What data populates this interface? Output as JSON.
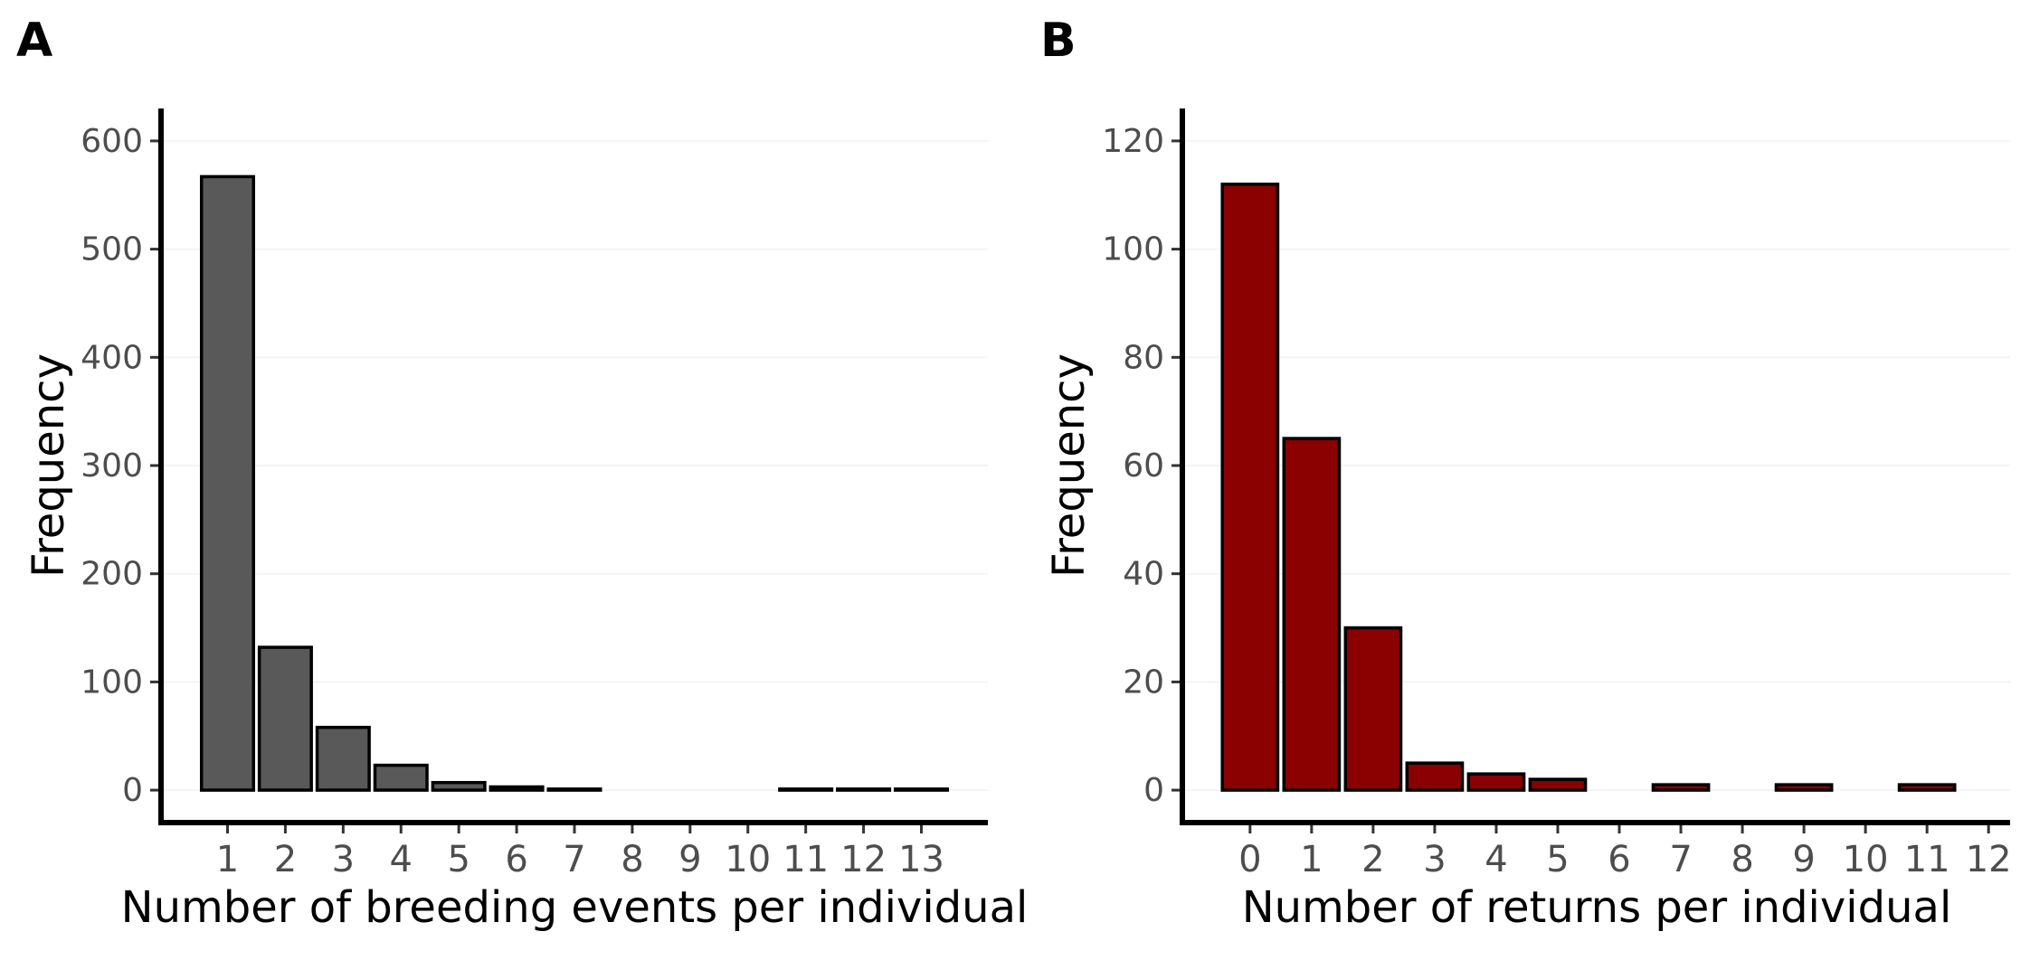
{
  "chart_data": [
    {
      "panel": "A",
      "type": "bar",
      "title": "",
      "xlabel": "Number of breeding events per individual",
      "ylabel": "Frequency",
      "x_ticks": [
        1,
        2,
        3,
        4,
        5,
        6,
        7,
        8,
        9,
        10,
        11,
        12,
        13
      ],
      "y_ticks": [
        0,
        100,
        200,
        300,
        400,
        500,
        600
      ],
      "ylim": [
        -30,
        630
      ],
      "xlim": [
        -0.15,
        14.15
      ],
      "categories": [
        1,
        2,
        3,
        4,
        5,
        6,
        7,
        8,
        9,
        10,
        11,
        12,
        13
      ],
      "values": [
        567,
        132,
        58,
        23,
        7,
        3,
        1,
        0,
        0,
        0,
        1,
        1,
        1
      ],
      "bar_color": "#595959",
      "grid": false,
      "legend": "none"
    },
    {
      "panel": "B",
      "type": "bar",
      "title": "",
      "xlabel": "Number of returns per individual",
      "ylabel": "Frequency",
      "x_ticks": [
        0,
        1,
        2,
        3,
        4,
        5,
        6,
        7,
        8,
        9,
        10,
        11,
        12
      ],
      "y_ticks": [
        0,
        20,
        40,
        60,
        80,
        100,
        120
      ],
      "ylim": [
        -6,
        126
      ],
      "xlim": [
        -1.1,
        12.35
      ],
      "categories": [
        0,
        1,
        2,
        3,
        4,
        5,
        6,
        7,
        8,
        9,
        10,
        11,
        12
      ],
      "values": [
        112,
        65,
        30,
        5,
        3,
        2,
        0,
        1,
        0,
        1,
        0,
        1,
        0
      ],
      "bar_color": "#8b0000",
      "grid": false,
      "legend": "none"
    }
  ]
}
